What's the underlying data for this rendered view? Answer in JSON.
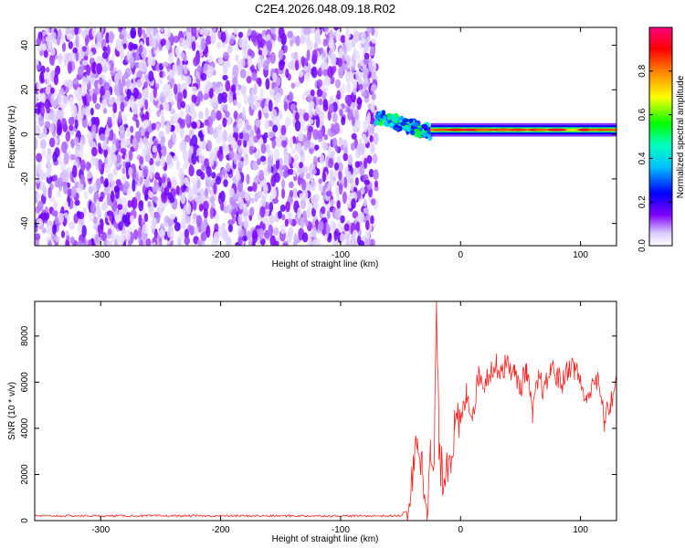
{
  "figure": {
    "title": "C2E4.2026.048.09.18.R02"
  },
  "chart_data": [
    {
      "type": "heatmap",
      "title": "",
      "xlabel": "Height of straight line (km)",
      "ylabel": "Frequency (Hz)",
      "xlim": [
        -355,
        130
      ],
      "ylim": [
        -50,
        48
      ],
      "xticks": [
        -300,
        -200,
        -100,
        0,
        100
      ],
      "yticks": [
        -40,
        -20,
        0,
        20,
        40
      ],
      "grid": false,
      "colorbar": {
        "label": "Normalized spectral amplitude",
        "range": [
          0,
          1
        ],
        "ticks": [
          0.0,
          0.2,
          0.4,
          0.6,
          0.8
        ],
        "colormap": [
          "#ffffff",
          "#c8b4ff",
          "#7a00ff",
          "#0000ff",
          "#00ffff",
          "#00ff00",
          "#ffff00",
          "#ff8000",
          "#ff0000",
          "#ff0080"
        ]
      },
      "description_regions": [
        {
          "name": "noise",
          "x": [
            -355,
            -70
          ],
          "y": [
            -50,
            48
          ],
          "amplitude": [
            0.05,
            0.3
          ]
        },
        {
          "name": "signal-onset",
          "x": [
            -70,
            -25
          ],
          "y": [
            -5,
            10
          ],
          "amplitude": [
            0.3,
            0.7
          ]
        },
        {
          "name": "signal-band",
          "x": [
            -25,
            130
          ],
          "y": [
            0,
            4
          ],
          "amplitude": [
            0.6,
            1.0
          ]
        }
      ]
    },
    {
      "type": "line",
      "title": "",
      "xlabel": "Height of straight line (km)",
      "ylabel": "SNR (10 * v/v)",
      "xlim": [
        -355,
        130
      ],
      "ylim": [
        0,
        9500
      ],
      "xticks": [
        -300,
        -200,
        -100,
        0,
        100
      ],
      "yticks": [
        0,
        2000,
        4000,
        6000,
        8000
      ],
      "grid": false,
      "series": [
        {
          "color": "#ff2020",
          "x": [
            -355,
            -300,
            -250,
            -200,
            -150,
            -100,
            -60,
            -45,
            -40,
            -36,
            -32,
            -28,
            -25,
            -22,
            -20,
            -18,
            -15,
            -12,
            -8,
            -5,
            0,
            5,
            10,
            15,
            20,
            25,
            30,
            35,
            40,
            45,
            50,
            55,
            60,
            65,
            70,
            75,
            80,
            85,
            90,
            95,
            100,
            105,
            110,
            115,
            120,
            125,
            130
          ],
          "y": [
            200,
            200,
            220,
            180,
            160,
            160,
            160,
            400,
            1500,
            3800,
            2200,
            1000,
            2600,
            2200,
            9500,
            3200,
            1800,
            2600,
            3000,
            3800,
            4200,
            5500,
            4600,
            6300,
            6000,
            6500,
            6700,
            6600,
            6800,
            6300,
            5800,
            6600,
            4500,
            6200,
            5600,
            6600,
            6300,
            5900,
            6700,
            6600,
            6100,
            5000,
            6200,
            5900,
            4300,
            5100,
            6000
          ]
        }
      ]
    }
  ]
}
